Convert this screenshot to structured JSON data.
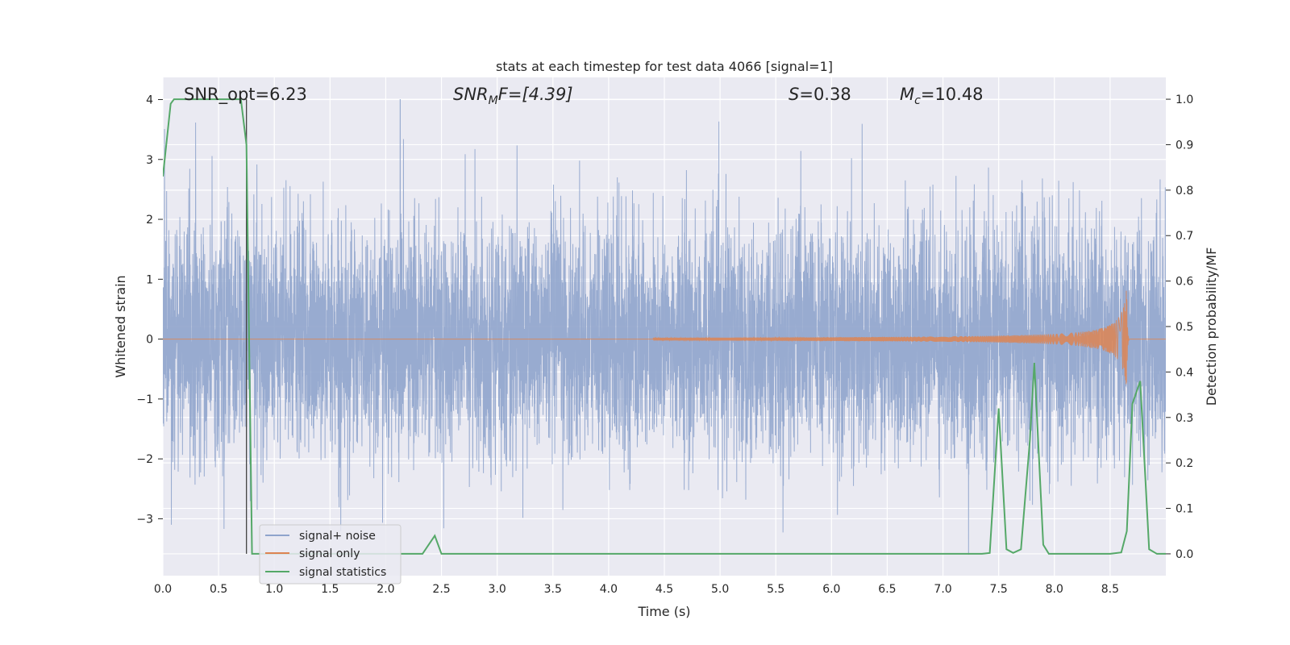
{
  "chart_data": {
    "type": "line",
    "title": "stats at each timestep for test data 4066 [signal=1]",
    "xlabel": "Time (s)",
    "ylabel": "Whitened strain",
    "y2label": "Detection probability/MF",
    "xlim": [
      0.0,
      9.0
    ],
    "ylim": [
      -3.95,
      4.37
    ],
    "y2lim": [
      -0.048,
      1.048
    ],
    "x_ticks": [
      0.0,
      0.5,
      1.0,
      1.5,
      2.0,
      2.5,
      3.0,
      3.5,
      4.0,
      4.5,
      5.0,
      5.5,
      6.0,
      6.5,
      7.0,
      7.5,
      8.0,
      8.5
    ],
    "x_tick_labels": [
      "0.0",
      "0.5",
      "1.0",
      "1.5",
      "2.0",
      "2.5",
      "3.0",
      "3.5",
      "4.0",
      "4.5",
      "5.0",
      "5.5",
      "6.0",
      "6.5",
      "7.0",
      "7.5",
      "8.0",
      "8.5"
    ],
    "y_ticks": [
      -3,
      -2,
      -1,
      0,
      1,
      2,
      3,
      4
    ],
    "y_tick_labels": [
      "−3",
      "−2",
      "−1",
      "0",
      "1",
      "2",
      "3",
      "4"
    ],
    "y2_ticks": [
      0.0,
      0.1,
      0.2,
      0.3,
      0.4,
      0.5,
      0.6,
      0.7,
      0.8,
      0.9,
      1.0
    ],
    "y2_tick_labels": [
      "0.0",
      "0.1",
      "0.2",
      "0.3",
      "0.4",
      "0.5",
      "0.6",
      "0.7",
      "0.8",
      "0.9",
      "1.0"
    ],
    "grid": true,
    "annotations": {
      "snr_opt": "SNR_opt=6.23",
      "snr_mf_main": "SNR",
      "snr_mf_sub": "M",
      "snr_mf_rest": "F=[4.39]",
      "s_main": "S",
      "s_rest": "=0.38",
      "mc_main": "M",
      "mc_sub": "c",
      "mc_rest": "=10.48"
    },
    "marker_line_x": 0.75,
    "legend": {
      "position": "lower-left",
      "entries": [
        "signal+ noise",
        "signal only",
        "signal statistics"
      ]
    },
    "colors": {
      "signal_noise": "#8fa4cc",
      "signal_only": "#dd8452",
      "statistics": "#55a868",
      "axes_bg": "#eaeaf2",
      "grid": "#ffffff",
      "marker_line": "#444444"
    },
    "series": [
      {
        "name": "signal+ noise",
        "axis": "left",
        "sampling": "whitened noise, ~4096 Hz, sigma 1, peaks near 4.0 at 2.13 s and -3.6 at 7.23 s"
      },
      {
        "name": "signal only",
        "axis": "left",
        "chirp": {
          "start_time": 4.4,
          "merger_time": 8.65,
          "peak_amplitude": 0.92,
          "end_time": 9.0
        }
      },
      {
        "name": "signal statistics",
        "axis": "right",
        "x": [
          0.0,
          0.07,
          0.1,
          0.2,
          0.3,
          0.4,
          0.5,
          0.6,
          0.7,
          0.75,
          0.8,
          1.0,
          2.0,
          2.33,
          2.44,
          2.5,
          3.0,
          4.0,
          5.0,
          6.0,
          7.0,
          7.35,
          7.42,
          7.5,
          7.57,
          7.63,
          7.7,
          7.78,
          7.82,
          7.9,
          7.95,
          8.0,
          8.5,
          8.6,
          8.65,
          8.7,
          8.77,
          8.85,
          8.92,
          9.0
        ],
        "y": [
          0.83,
          0.99,
          1.0,
          1.0,
          1.0,
          1.0,
          1.0,
          1.0,
          1.0,
          0.9,
          0.0,
          0.0,
          0.0,
          0.0,
          0.04,
          0.0,
          0.0,
          0.0,
          0.0,
          0.0,
          0.0,
          0.0,
          0.002,
          0.32,
          0.01,
          0.002,
          0.01,
          0.25,
          0.42,
          0.02,
          0.0,
          0.0,
          0.0,
          0.003,
          0.05,
          0.33,
          0.38,
          0.01,
          0.0,
          0.0
        ]
      }
    ]
  }
}
